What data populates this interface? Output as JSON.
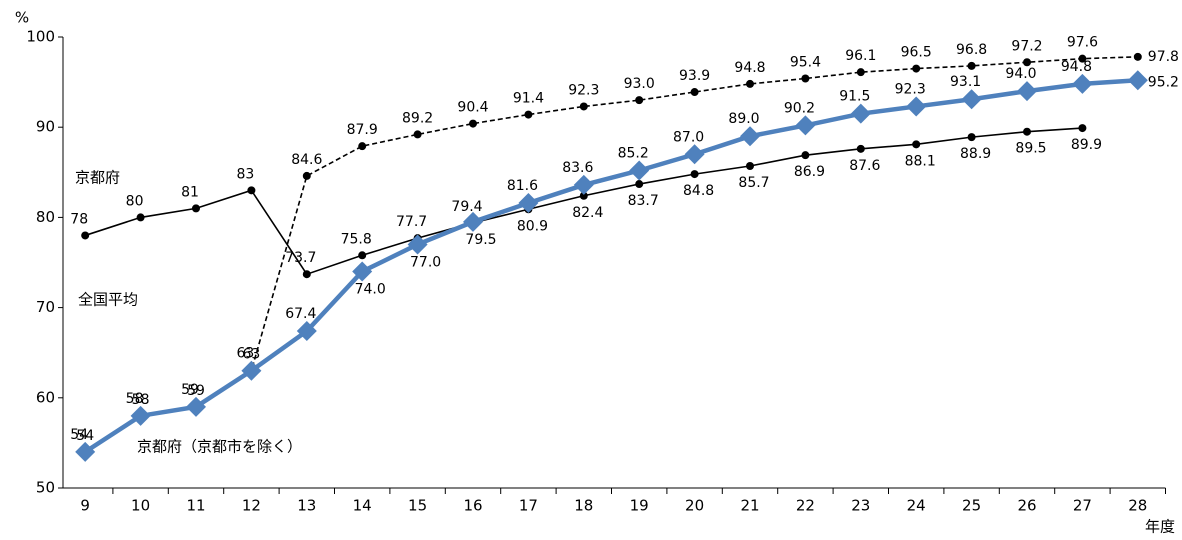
{
  "chart_data": {
    "type": "line",
    "y_label": "%",
    "x_label": "年度",
    "categories": [
      "9",
      "10",
      "11",
      "12",
      "13",
      "14",
      "15",
      "16",
      "17",
      "18",
      "19",
      "20",
      "21",
      "22",
      "23",
      "24",
      "25",
      "26",
      "27",
      "28"
    ],
    "ylim": [
      50,
      100
    ],
    "yticks": [
      50,
      60,
      70,
      80,
      90,
      100
    ],
    "last_label_color": "#ff0000",
    "series": [
      {
        "name": "京都府",
        "color": "#000000",
        "dashed": true,
        "marker": "circle",
        "values": [
          54,
          58,
          59,
          63,
          84.6,
          87.9,
          89.2,
          90.4,
          91.4,
          92.3,
          93.0,
          93.9,
          94.8,
          95.4,
          96.1,
          96.5,
          96.8,
          97.2,
          97.6,
          97.8
        ],
        "value_labels": [
          "54",
          "58",
          "59",
          "63",
          "84.6",
          "87.9",
          "89.2",
          "90.4",
          "91.4",
          "92.3",
          "93.0",
          "93.9",
          "94.8",
          "95.4",
          "96.1",
          "96.5",
          "96.8",
          "97.2",
          "97.6",
          "97.8"
        ]
      },
      {
        "name": "全国平均",
        "color": "#000000",
        "dashed": false,
        "marker": "circle",
        "values": [
          78,
          80,
          81,
          83,
          73.7,
          75.8,
          77.7,
          79.4,
          80.9,
          82.4,
          83.7,
          84.8,
          85.7,
          86.9,
          87.6,
          88.1,
          88.9,
          89.5,
          89.9,
          null
        ],
        "value_labels": [
          "78",
          "80",
          "81",
          "83",
          "73.7",
          "75.8",
          "77.7",
          "79.4",
          "80.9",
          "82.4",
          "83.7",
          "84.8",
          "85.7",
          "86.9",
          "87.6",
          "88.1",
          "88.9",
          "89.5",
          "89.9",
          null
        ]
      },
      {
        "name": "京都府（京都市を除く）",
        "color": "#4f81bd",
        "dashed": false,
        "marker": "diamond",
        "values": [
          54,
          58,
          59,
          63,
          67.4,
          74.0,
          77.0,
          79.5,
          81.6,
          83.6,
          85.2,
          87.0,
          89.0,
          90.2,
          91.5,
          92.3,
          93.1,
          94.0,
          94.8,
          95.2
        ],
        "value_labels": [
          "54",
          "58",
          "59",
          "63",
          "67.4",
          "74.0",
          "77.0",
          "79.5",
          "81.6",
          "83.6",
          "85.2",
          "87.0",
          "89.0",
          "90.2",
          "91.5",
          "92.3",
          "93.1",
          "94.0",
          "94.8",
          "95.2"
        ]
      }
    ]
  }
}
